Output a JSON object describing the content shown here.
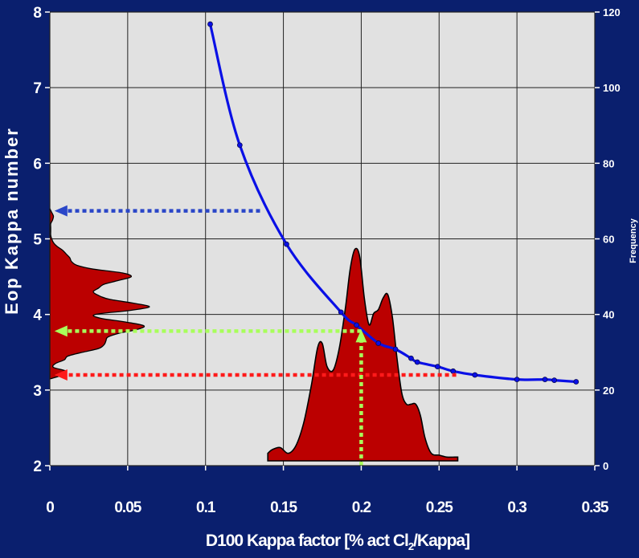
{
  "colors": {
    "background": "#0a1f6e",
    "plot_area": "#e1e1e1",
    "grid": "#222222",
    "curve": "#0a10e6",
    "fill": "#bb0000",
    "arrow_blue": "#2a46c8",
    "arrow_green": "#a8ff5a",
    "arrow_red": "#ff1a1a"
  },
  "chart_data": {
    "type": "line",
    "title": "",
    "xlabel_parts": {
      "main": "D100 Kappa factor [% act Cl",
      "sub": "2",
      "tail": "/Kappa]"
    },
    "ylabel": "Eop Kappa number",
    "y2label": "Frequency",
    "xlim": [
      0,
      0.35
    ],
    "ylim": [
      2,
      8
    ],
    "y2lim": [
      0,
      120
    ],
    "grid": true,
    "x_ticks": [
      {
        "value": 0,
        "label": "0"
      },
      {
        "value": 0.05,
        "label": "0.05"
      },
      {
        "value": 0.1,
        "label": "0.1"
      },
      {
        "value": 0.15,
        "label": "0.15"
      },
      {
        "value": 0.2,
        "label": "0.2"
      },
      {
        "value": 0.25,
        "label": "0.25"
      },
      {
        "value": 0.3,
        "label": "0.3"
      },
      {
        "value": 0.35,
        "label": "0.35"
      }
    ],
    "y_ticks": [
      {
        "value": 2,
        "label": "2"
      },
      {
        "value": 3,
        "label": "3"
      },
      {
        "value": 4,
        "label": "4"
      },
      {
        "value": 5,
        "label": "5"
      },
      {
        "value": 6,
        "label": "6"
      },
      {
        "value": 7,
        "label": "7"
      },
      {
        "value": 8,
        "label": "8"
      }
    ],
    "y2_ticks": [
      {
        "value": 0,
        "label": "0"
      },
      {
        "value": 20,
        "label": "20"
      },
      {
        "value": 40,
        "label": "40"
      },
      {
        "value": 60,
        "label": "60"
      },
      {
        "value": 80,
        "label": "80"
      },
      {
        "value": 100,
        "label": "100"
      },
      {
        "value": 120,
        "label": "120"
      }
    ],
    "curve": {
      "x": [
        0.103,
        0.122,
        0.152,
        0.187,
        0.197,
        0.211,
        0.222,
        0.232,
        0.236,
        0.249,
        0.259,
        0.273,
        0.3,
        0.318,
        0.324,
        0.338
      ],
      "y": [
        7.84,
        6.24,
        4.93,
        4.03,
        3.86,
        3.62,
        3.54,
        3.42,
        3.37,
        3.31,
        3.25,
        3.2,
        3.14,
        3.14,
        3.13,
        3.11
      ]
    },
    "x_distribution": {
      "x": [
        0.14,
        0.143,
        0.148,
        0.153,
        0.158,
        0.163,
        0.168,
        0.172,
        0.175,
        0.178,
        0.182,
        0.186,
        0.19,
        0.193,
        0.196,
        0.199,
        0.202,
        0.205,
        0.208,
        0.211,
        0.214,
        0.217,
        0.22,
        0.223,
        0.226,
        0.229,
        0.232,
        0.235,
        0.238,
        0.241,
        0.245,
        0.25,
        0.255,
        0.26,
        0.262
      ],
      "frequency": [
        2,
        3,
        3.5,
        2,
        4,
        10,
        20,
        30,
        31,
        25,
        24,
        30,
        41,
        51,
        56,
        54,
        43,
        36,
        39,
        40,
        43,
        44,
        38,
        27,
        18,
        15,
        15,
        15,
        12,
        6,
        2,
        1.5,
        1,
        1,
        1
      ]
    },
    "y_distribution": {
      "kappa": [
        3.15,
        3.2,
        3.25,
        3.3,
        3.35,
        3.4,
        3.45,
        3.5,
        3.55,
        3.6,
        3.65,
        3.7,
        3.75,
        3.8,
        3.85,
        3.9,
        3.95,
        4.0,
        4.05,
        4.1,
        4.15,
        4.2,
        4.25,
        4.3,
        4.35,
        4.4,
        4.45,
        4.5,
        4.55,
        4.6,
        4.65,
        4.7,
        4.75,
        4.8,
        4.85,
        4.9,
        4.95,
        5.0,
        5.05,
        5.1,
        5.15,
        5.2,
        5.25,
        5.3,
        5.35,
        5.4
      ],
      "frequency": [
        0.5,
        7,
        9,
        2,
        3,
        8,
        10,
        18,
        27,
        30,
        31,
        32,
        38,
        48,
        52,
        42,
        28,
        25,
        43,
        55,
        46,
        33,
        27,
        24,
        27,
        30,
        38,
        45,
        40,
        24,
        15,
        12,
        11,
        9,
        7,
        4,
        2,
        1,
        0.5,
        0.5,
        0.5,
        0.5,
        1.5,
        2,
        1,
        0
      ]
    },
    "arrows": [
      {
        "name": "blue-kappa-arrow",
        "color_key": "arrow_blue",
        "orientation": "horizontal",
        "y": 5.37,
        "x_from": 0.135,
        "x_to": 0.003
      },
      {
        "name": "green-kappa-arrow",
        "color_key": "arrow_green",
        "orientation": "horizontal",
        "y": 3.78,
        "x_from": 0.2,
        "x_to": 0.003
      },
      {
        "name": "red-kappa-arrow",
        "color_key": "arrow_red",
        "orientation": "horizontal",
        "y": 3.2,
        "x_from": 0.261,
        "x_to": 0.003
      },
      {
        "name": "green-factor-arrow",
        "color_key": "arrow_green",
        "orientation": "vertical",
        "x": 0.2,
        "y_from": 2.0,
        "y_to": 3.78
      }
    ]
  }
}
